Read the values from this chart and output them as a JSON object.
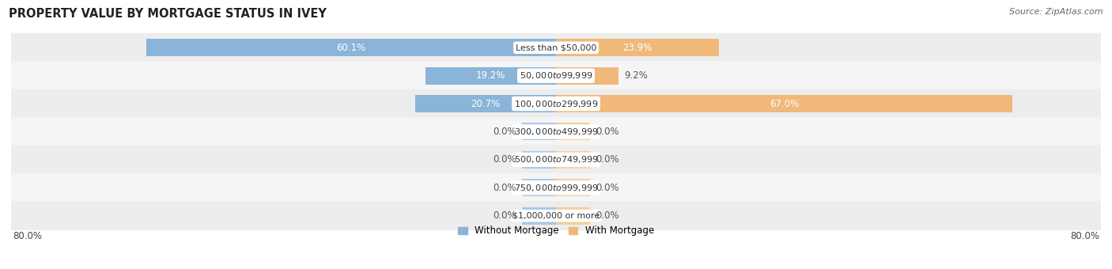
{
  "title": "PROPERTY VALUE BY MORTGAGE STATUS IN IVEY",
  "source": "Source: ZipAtlas.com",
  "categories": [
    "Less than $50,000",
    "$50,000 to $99,999",
    "$100,000 to $299,999",
    "$300,000 to $499,999",
    "$500,000 to $749,999",
    "$750,000 to $999,999",
    "$1,000,000 or more"
  ],
  "without_mortgage": [
    60.1,
    19.2,
    20.7,
    0.0,
    0.0,
    0.0,
    0.0
  ],
  "with_mortgage": [
    23.9,
    9.2,
    67.0,
    0.0,
    0.0,
    0.0,
    0.0
  ],
  "color_without": "#8ab4d8",
  "color_with": "#f0b97a",
  "color_without_stub": "#a8c8e8",
  "color_with_stub": "#f5cfa0",
  "xlim": 80.0,
  "stub_size": 5.0,
  "bar_height": 0.62,
  "row_bg_even": "#ededee",
  "row_bg_odd": "#f5f5f6",
  "title_fontsize": 10.5,
  "source_fontsize": 8,
  "tick_fontsize": 8.5,
  "bar_label_fontsize": 8.5,
  "cat_label_fontsize": 8
}
